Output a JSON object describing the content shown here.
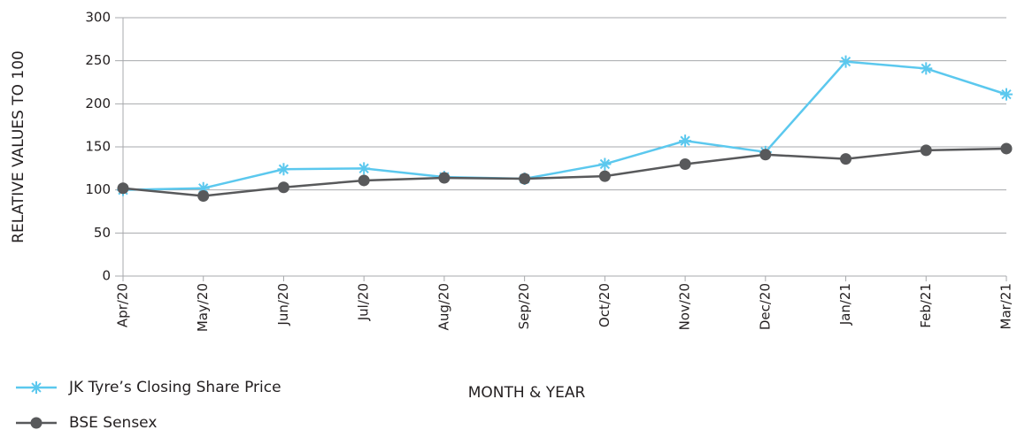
{
  "chart_data": {
    "type": "line",
    "x_label": "MONTH & YEAR",
    "y_label": "RELATIVE VALUES TO 100",
    "categories": [
      "Apr/20",
      "May/20",
      "Jun/20",
      "Jul/20",
      "Aug/20",
      "Sep/20",
      "Oct/20",
      "Nov/20",
      "Dec/20",
      "Jan/21",
      "Feb/21",
      "Mar/21"
    ],
    "series": [
      {
        "name": "JK Tyre’s Closing Share Price",
        "color": "#5bc8ee",
        "marker": "asterisk",
        "values": [
          100,
          102,
          124,
          125,
          115,
          113,
          130,
          157,
          144,
          249,
          241,
          211
        ]
      },
      {
        "name": "BSE Sensex",
        "color": "#58595b",
        "marker": "circle",
        "values": [
          102,
          93,
          103,
          111,
          114,
          113,
          116,
          130,
          141,
          136,
          146,
          148
        ]
      }
    ],
    "ylim": [
      0,
      300
    ],
    "yticks": [
      0,
      50,
      100,
      150,
      200,
      250,
      300
    ],
    "grid": true,
    "legend": "bottom-left"
  }
}
